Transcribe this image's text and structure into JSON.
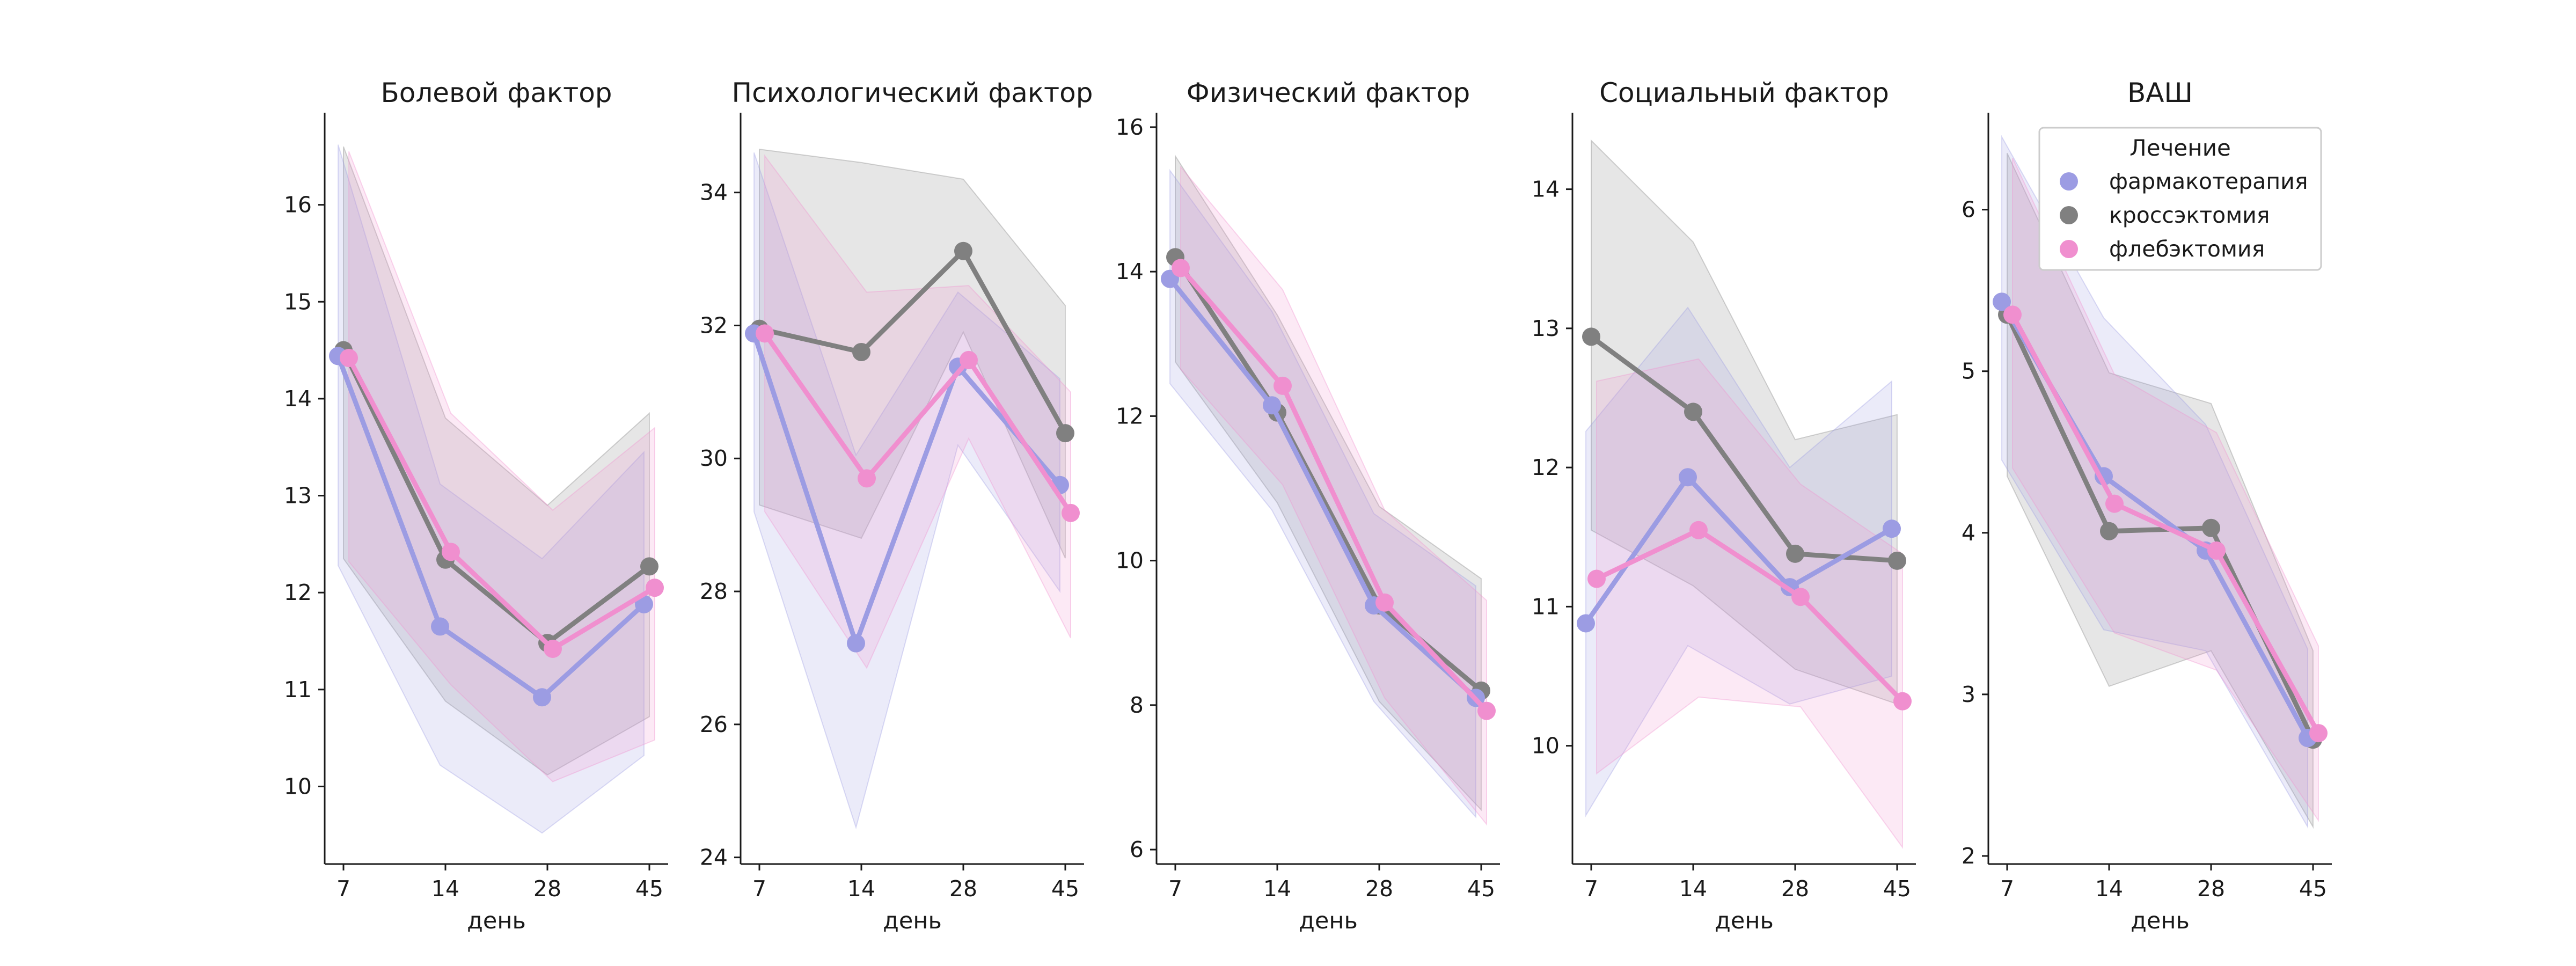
{
  "legend": {
    "title": "Лечение",
    "entries": [
      "фармакотерапия",
      "кроссэктомия",
      "флебэктомия"
    ]
  },
  "colors": {
    "фармакотерапия": "#9c9ce3",
    "кроссэктомия": "#808080",
    "флебэктомия": "#f08fcf"
  },
  "chart_data": [
    {
      "type": "line",
      "title": "Болевой фактор",
      "xlabel": "день",
      "ylabel": "",
      "categories": [
        "7",
        "14",
        "28",
        "45"
      ],
      "yticks": [
        10,
        11,
        12,
        13,
        14,
        15,
        16
      ],
      "ylim": [
        9.2,
        16.95
      ],
      "series": [
        {
          "name": "фармакотерапия",
          "values": [
            14.44,
            11.65,
            10.92,
            11.88
          ],
          "lower": [
            12.28,
            10.22,
            9.52,
            10.32
          ],
          "upper": [
            16.62,
            13.12,
            12.35,
            13.45
          ]
        },
        {
          "name": "кроссэктомия",
          "values": [
            14.5,
            12.34,
            11.48,
            12.27
          ],
          "lower": [
            12.35,
            10.88,
            10.12,
            10.72
          ],
          "upper": [
            16.6,
            13.8,
            12.9,
            13.85
          ]
        },
        {
          "name": "флебэктомия",
          "values": [
            14.42,
            12.42,
            11.42,
            12.05
          ],
          "lower": [
            12.32,
            11.05,
            10.05,
            10.48
          ],
          "upper": [
            16.55,
            13.85,
            12.85,
            13.7
          ]
        }
      ]
    },
    {
      "type": "line",
      "title": "Психологический фактор",
      "xlabel": "день",
      "ylabel": "",
      "categories": [
        "7",
        "14",
        "28",
        "45"
      ],
      "yticks": [
        24,
        26,
        28,
        30,
        32,
        34
      ],
      "ylim": [
        23.9,
        35.2
      ],
      "series": [
        {
          "name": "фармакотерапия",
          "values": [
            31.88,
            27.22,
            31.38,
            29.6
          ],
          "lower": [
            29.2,
            24.45,
            30.2,
            28.0
          ],
          "upper": [
            34.6,
            30.05,
            32.5,
            31.2
          ]
        },
        {
          "name": "кроссэктомия",
          "values": [
            31.95,
            31.6,
            33.12,
            30.38
          ],
          "lower": [
            29.3,
            28.8,
            31.9,
            28.5
          ],
          "upper": [
            34.65,
            34.45,
            34.2,
            32.3
          ]
        },
        {
          "name": "флебэктомия",
          "values": [
            31.88,
            29.7,
            31.48,
            29.18
          ],
          "lower": [
            29.2,
            26.85,
            30.3,
            27.3
          ],
          "upper": [
            34.55,
            32.5,
            32.6,
            31.0
          ]
        }
      ]
    },
    {
      "type": "line",
      "title": "Физический фактор",
      "xlabel": "день",
      "ylabel": "",
      "categories": [
        "7",
        "14",
        "28",
        "45"
      ],
      "yticks": [
        6,
        8,
        10,
        12,
        14,
        16
      ],
      "ylim": [
        5.8,
        16.2
      ],
      "series": [
        {
          "name": "фармакотерапия",
          "values": [
            13.9,
            12.15,
            9.38,
            8.1
          ],
          "lower": [
            12.45,
            10.7,
            8.05,
            6.45
          ],
          "upper": [
            15.4,
            13.45,
            10.65,
            9.65
          ]
        },
        {
          "name": "кроссэктомия",
          "values": [
            14.2,
            12.05,
            9.38,
            8.2
          ],
          "lower": [
            12.75,
            10.8,
            8.05,
            6.55
          ],
          "upper": [
            15.6,
            13.4,
            10.75,
            9.75
          ]
        },
        {
          "name": "флебэктомия",
          "values": [
            14.05,
            12.42,
            9.42,
            7.92
          ],
          "lower": [
            12.65,
            11.05,
            8.1,
            6.35
          ],
          "upper": [
            15.45,
            13.75,
            10.7,
            9.45
          ]
        }
      ]
    },
    {
      "type": "line",
      "title": "Социальный фактор",
      "xlabel": "день",
      "ylabel": "",
      "categories": [
        "7",
        "14",
        "28",
        "45"
      ],
      "yticks": [
        10,
        11,
        12,
        13,
        14
      ],
      "ylim": [
        9.15,
        14.55
      ],
      "series": [
        {
          "name": "фармакотерапия",
          "values": [
            10.88,
            11.93,
            11.14,
            11.56
          ],
          "lower": [
            9.5,
            10.72,
            10.3,
            10.5
          ],
          "upper": [
            12.26,
            13.15,
            12.0,
            12.62
          ]
        },
        {
          "name": "кроссэктомия",
          "values": [
            12.94,
            12.4,
            11.38,
            11.33
          ],
          "lower": [
            11.55,
            11.15,
            10.55,
            10.3
          ],
          "upper": [
            14.35,
            13.62,
            12.2,
            12.38
          ]
        },
        {
          "name": "флебэктомия",
          "values": [
            11.2,
            11.55,
            11.07,
            10.32
          ],
          "lower": [
            9.8,
            10.35,
            10.28,
            9.27
          ],
          "upper": [
            12.62,
            12.78,
            11.88,
            11.38
          ]
        }
      ]
    },
    {
      "type": "line",
      "title": "ВАШ",
      "xlabel": "день",
      "ylabel": "",
      "categories": [
        "7",
        "14",
        "28",
        "45"
      ],
      "yticks": [
        2,
        3,
        4,
        5,
        6
      ],
      "ylim": [
        1.95,
        6.6
      ],
      "series": [
        {
          "name": "фармакотерапия",
          "values": [
            5.43,
            4.35,
            3.89,
            2.73
          ],
          "lower": [
            4.45,
            3.4,
            3.27,
            2.18
          ],
          "upper": [
            6.45,
            5.33,
            4.67,
            3.28
          ]
        },
        {
          "name": "кроссэктомия",
          "values": [
            5.35,
            4.01,
            4.03,
            2.72
          ],
          "lower": [
            4.35,
            3.05,
            3.27,
            2.18
          ],
          "upper": [
            6.35,
            4.99,
            4.8,
            3.27
          ]
        },
        {
          "name": "флебэктомия",
          "values": [
            5.35,
            4.18,
            3.89,
            2.76
          ],
          "lower": [
            4.4,
            3.38,
            3.15,
            2.22
          ],
          "upper": [
            6.32,
            4.98,
            4.62,
            3.3
          ]
        }
      ]
    }
  ]
}
